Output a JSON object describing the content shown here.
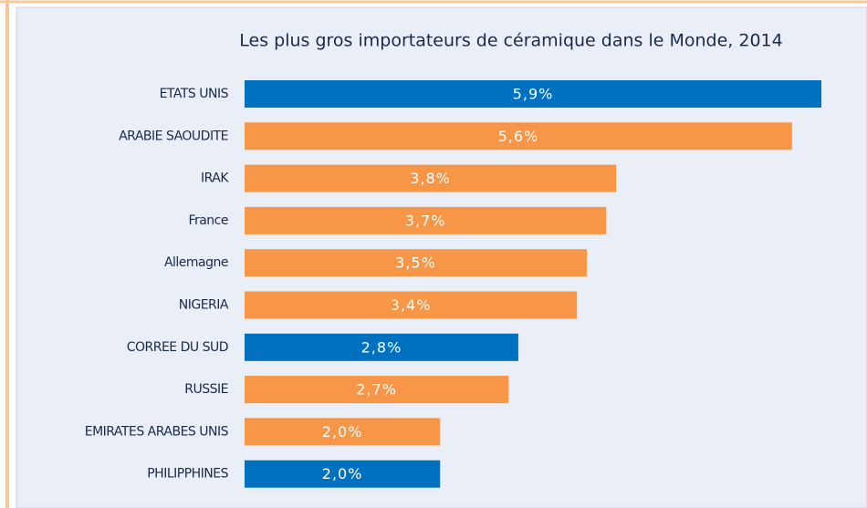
{
  "chart_data": {
    "type": "bar",
    "orientation": "horizontal",
    "title": "Les plus gros importateurs de céramique dans le Monde, 2014",
    "categories": [
      "ETATS UNIS",
      "ARABIE SAOUDITE",
      "IRAK",
      "France",
      "Allemagne",
      "NIGERIA",
      "CORREE DU SUD",
      "RUSSIE",
      "EMIRATES ARABES UNIS",
      "PHILIPPHINES"
    ],
    "values": [
      5.9,
      5.6,
      3.8,
      3.7,
      3.5,
      3.4,
      2.8,
      2.7,
      2.0,
      2.0
    ],
    "value_labels": [
      "5,9%",
      "5,6%",
      "3,8%",
      "3,7%",
      "3,5%",
      "3,4%",
      "2,8%",
      "2,7%",
      "2,0%",
      "2,0%"
    ],
    "colors": [
      "#0070c0",
      "#f79646",
      "#f79646",
      "#f79646",
      "#f79646",
      "#f79646",
      "#0070c0",
      "#f79646",
      "#f79646",
      "#0070c0"
    ]
  }
}
